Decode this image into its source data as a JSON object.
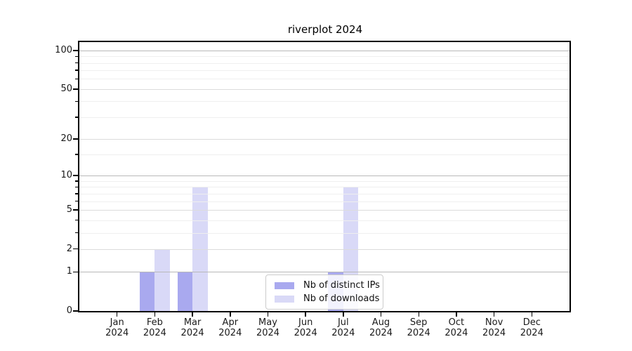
{
  "chart_data": {
    "type": "bar",
    "title": "riverplot 2024",
    "categories": [
      "Jan",
      "Feb",
      "Mar",
      "Apr",
      "May",
      "Jun",
      "Jul",
      "Aug",
      "Sep",
      "Oct",
      "Nov",
      "Dec"
    ],
    "year_label": "2024",
    "series": [
      {
        "name": "Nb of distinct IPs",
        "color": "#a9a9ef",
        "values": [
          0,
          1,
          1,
          0,
          0,
          0,
          1,
          0,
          0,
          0,
          0,
          0
        ]
      },
      {
        "name": "Nb of downloads",
        "color": "#d9d9f7",
        "values": [
          0,
          2,
          8,
          0,
          0,
          0,
          8,
          0,
          0,
          0,
          0,
          0
        ]
      }
    ],
    "yscale": "log1p",
    "ylim": [
      0,
      116
    ],
    "yticks": [
      0,
      1,
      2,
      5,
      10,
      20,
      50,
      100
    ],
    "minor_yticks": [
      3,
      4,
      6,
      7,
      8,
      9,
      15,
      30,
      40,
      60,
      70,
      80,
      90
    ],
    "major_grid_values": [
      1,
      10,
      100
    ],
    "grid": "horizontal",
    "legend_position": "inside-lower-center",
    "colors": {
      "grid_major": "#b8b8b8",
      "grid_mid": "#dcdcdc",
      "grid_minor": "#efefef",
      "axis": "#000000",
      "background": "#ffffff"
    }
  }
}
